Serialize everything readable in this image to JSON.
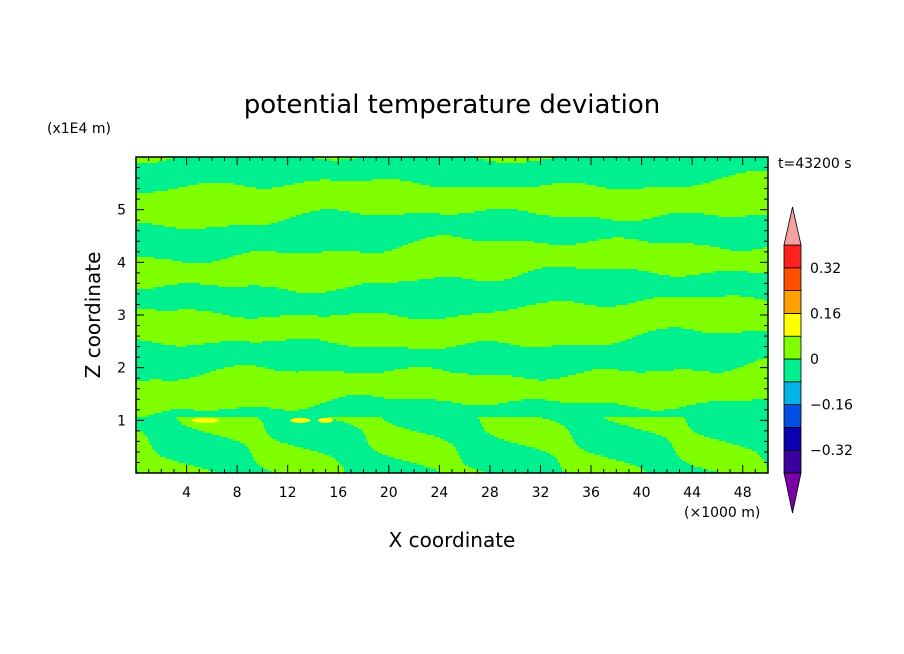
{
  "chart_data": {
    "type": "heatmap",
    "title": "potential temperature deviation",
    "xlabel": "X coordinate",
    "ylabel": "Z coordinate",
    "x_unit": "(×1000 m)",
    "y_unit": "(x1E4 m)",
    "time_label": "t=43200 s",
    "xlim": [
      0,
      50
    ],
    "ylim": [
      0,
      6
    ],
    "x_ticks": [
      4,
      8,
      12,
      16,
      20,
      24,
      28,
      32,
      36,
      40,
      44,
      48
    ],
    "y_ticks": [
      1,
      2,
      3,
      4,
      5
    ],
    "colorbar": {
      "labels": [
        "0.32",
        "0.16",
        "0",
        "−0.16",
        "−0.32"
      ],
      "levels": [
        -0.4,
        -0.32,
        -0.24,
        -0.16,
        -0.08,
        0,
        0.08,
        0.16,
        0.24,
        0.32,
        0.4
      ],
      "colors": [
        "#7b00a8",
        "#3a00a0",
        "#0a00b0",
        "#0050e6",
        "#00b4e6",
        "#00f090",
        "#80ff00",
        "#ffff00",
        "#ffa000",
        "#ff5000",
        "#ff2020",
        "#f5a0a0"
      ],
      "extend": "both"
    },
    "field_description_values": {
      "dominant_bands": [
        "−0.08 to 0",
        "0 to 0.08"
      ],
      "max_observed_band": "0.08 to 0.16",
      "max_observed_location": {
        "x": [
          4,
          18
        ],
        "z": 1.0
      }
    }
  }
}
